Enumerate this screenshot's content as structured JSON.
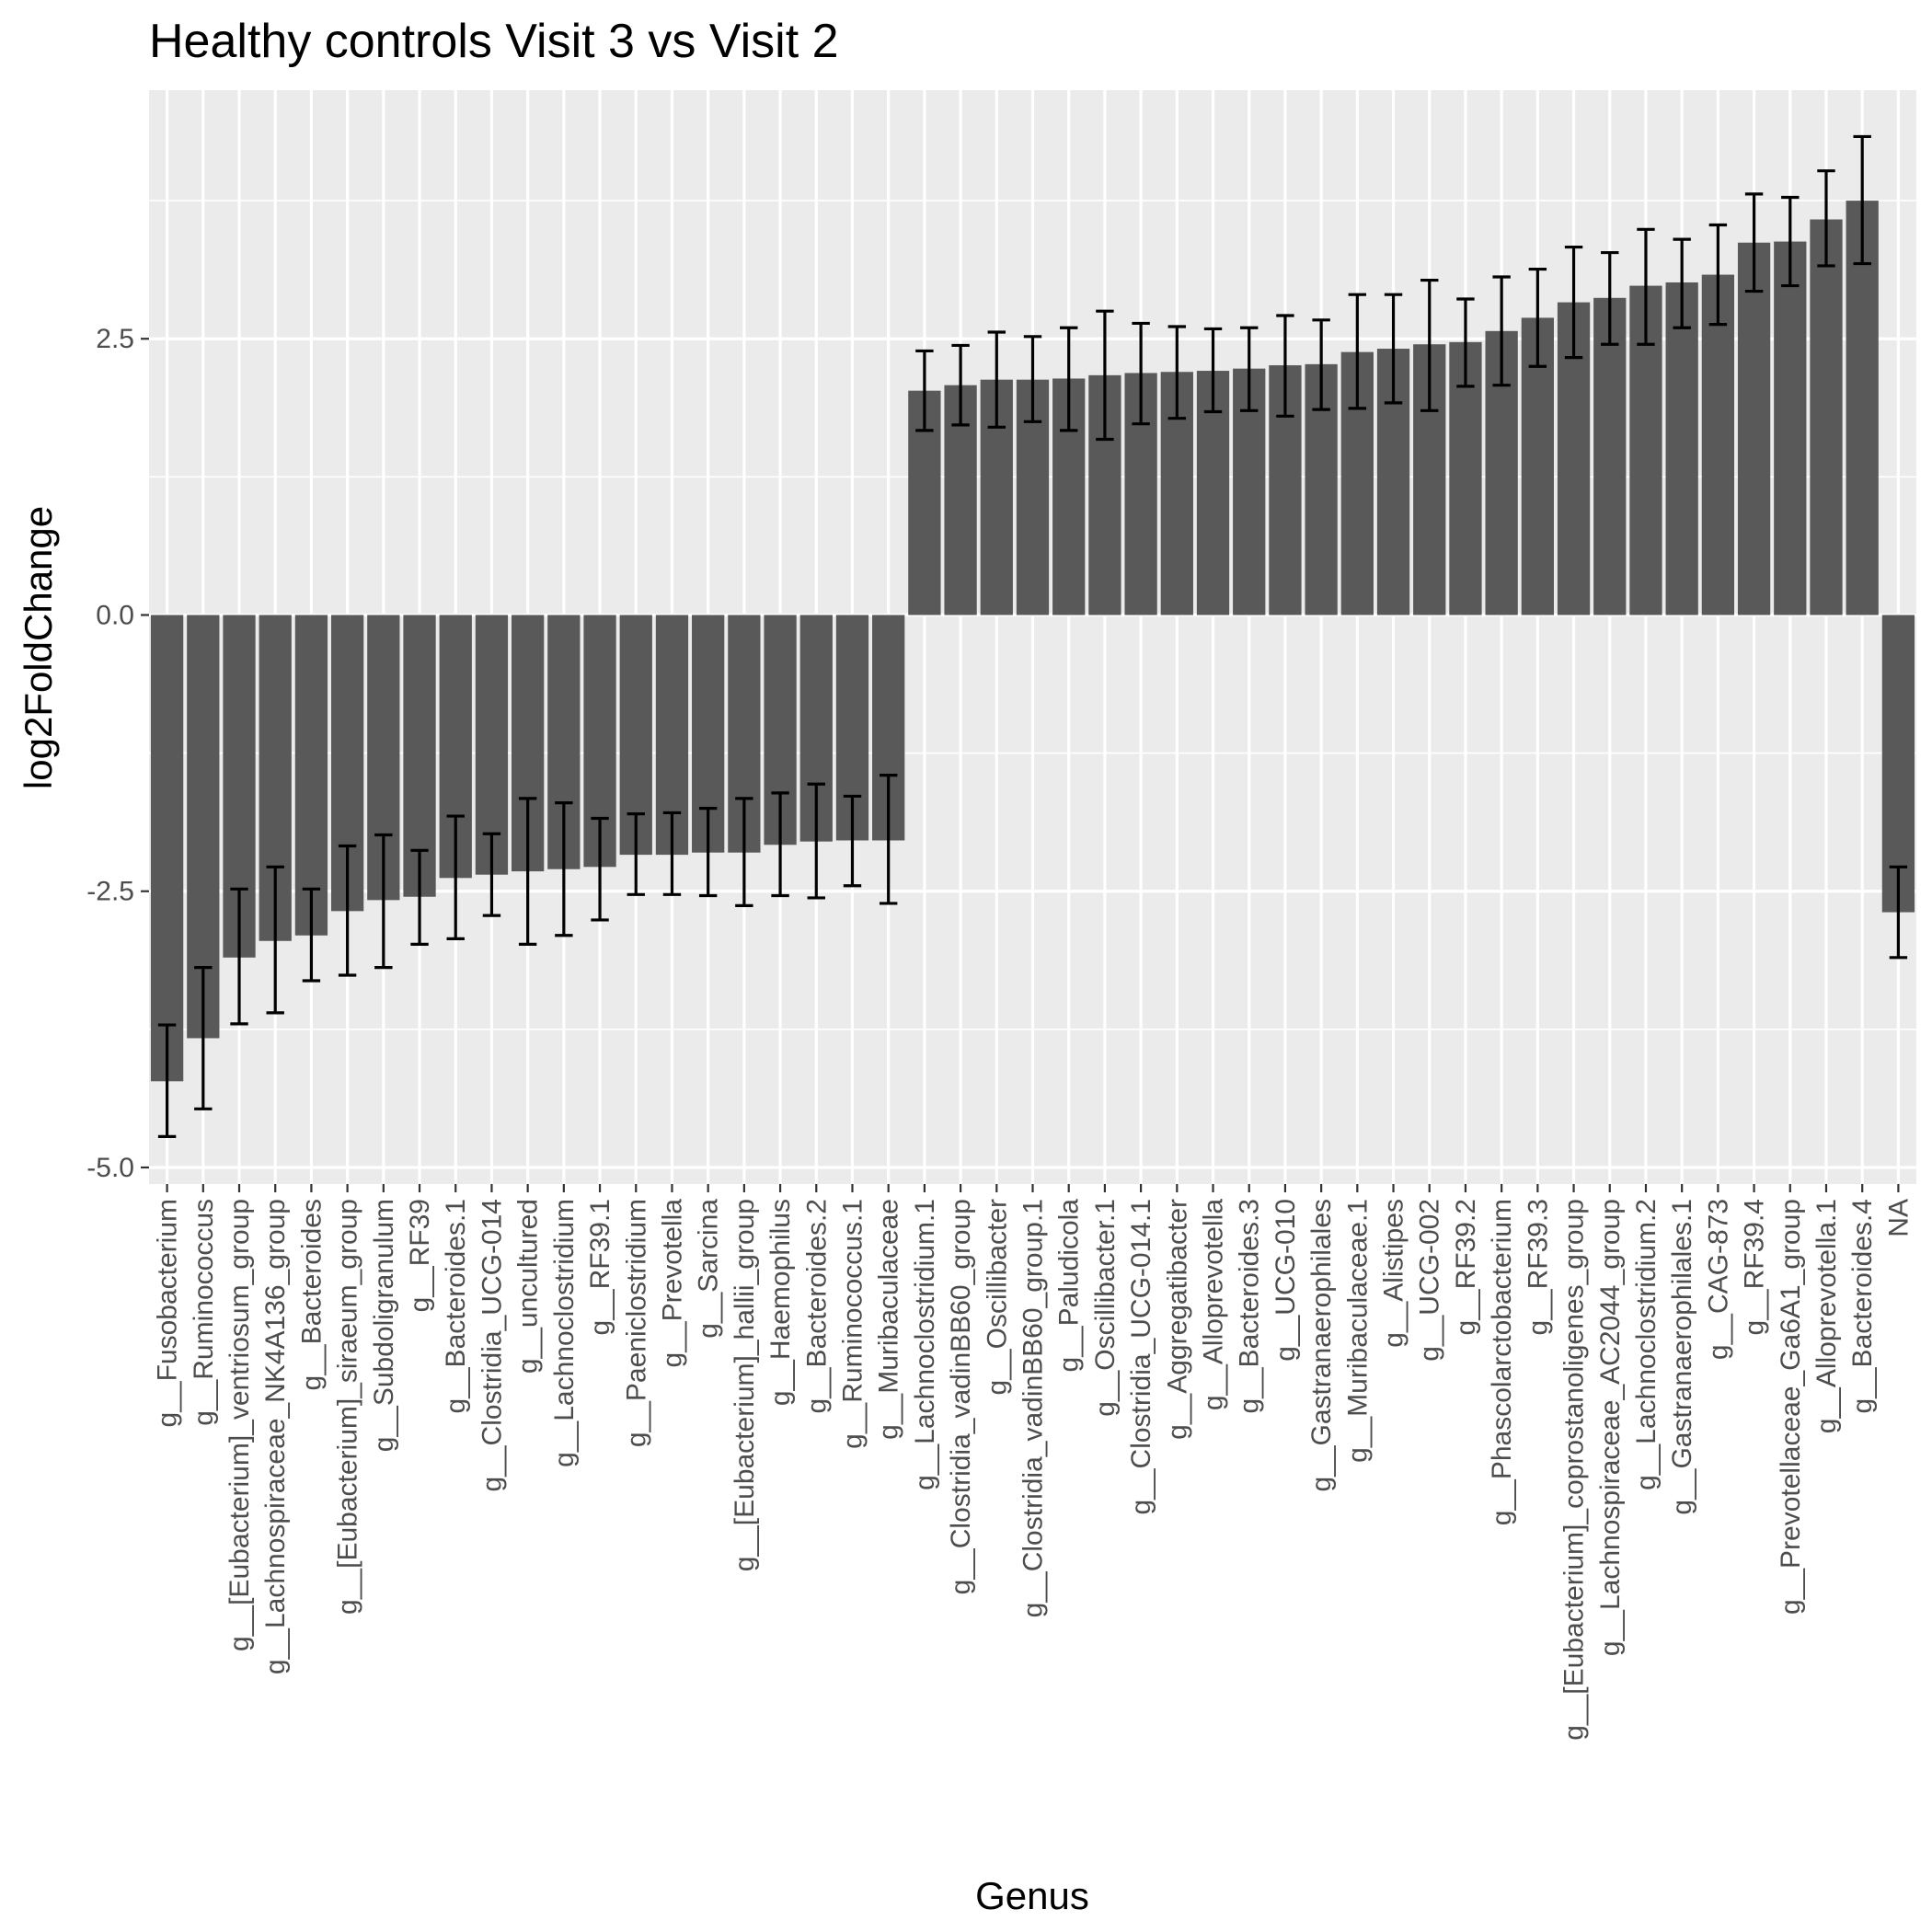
{
  "chart_data": {
    "type": "bar",
    "title": "Healthy controls Visit 3 vs Visit 2",
    "xlabel": "Genus",
    "ylabel": "log2FoldChange",
    "ylim": [
      -5.15,
      4.75
    ],
    "yticks": [
      -5.0,
      -2.5,
      0.0,
      2.5
    ],
    "ytick_labels": [
      "-5.0",
      "-2.5",
      "0.0",
      "2.5"
    ],
    "grid": true,
    "categories": [
      "g__Fusobacterium",
      "g__Ruminococcus",
      "g__[Eubacterium]_ventriosum_group",
      "g__Lachnospiraceae_NK4A136_group",
      "g__Bacteroides",
      "g__[Eubacterium]_siraeum_group",
      "g__Subdoligranulum",
      "g__RF39",
      "g__Bacteroides.1",
      "g__Clostridia_UCG-014",
      "g__uncultured",
      "g__Lachnoclostridium",
      "g__RF39.1",
      "g__Paeniclostridium",
      "g__Prevotella",
      "g__Sarcina",
      "g__[Eubacterium]_hallii_group",
      "g__Haemophilus",
      "g__Bacteroides.2",
      "g__Ruminococcus.1",
      "g__Muribaculaceae",
      "g__Lachnoclostridium.1",
      "g__Clostridia_vadinBB60_group",
      "g__Oscillibacter",
      "g__Clostridia_vadinBB60_group.1",
      "g__Paludicola",
      "g__Oscillibacter.1",
      "g__Clostridia_UCG-014.1",
      "g__Aggregatibacter",
      "g__Alloprevotella",
      "g__Bacteroides.3",
      "g__UCG-010",
      "g__Gastranaerophilales",
      "g__Muribaculaceae.1",
      "g__Alistipes",
      "g__UCG-002",
      "g__RF39.2",
      "g__Phascolarctobacterium",
      "g__RF39.3",
      "g__[Eubacterium]_coprostanoligenes_group",
      "g__Lachnospiraceae_AC2044_group",
      "g__Lachnoclostridium.2",
      "g__Gastranaerophilales.1",
      "g__CAG-873",
      "g__RF39.4",
      "g__Prevotellaceae_Ga6A1_group",
      "g__Alloprevotella.1",
      "g__Bacteroides.4",
      "NA"
    ],
    "values": [
      -4.22,
      -3.83,
      -3.1,
      -2.95,
      -2.9,
      -2.68,
      -2.58,
      -2.55,
      -2.38,
      -2.35,
      -2.32,
      -2.3,
      -2.28,
      -2.17,
      -2.17,
      -2.15,
      -2.15,
      -2.08,
      -2.05,
      -2.04,
      -2.04,
      2.03,
      2.08,
      2.13,
      2.13,
      2.14,
      2.17,
      2.19,
      2.2,
      2.21,
      2.23,
      2.26,
      2.27,
      2.38,
      2.41,
      2.45,
      2.47,
      2.57,
      2.69,
      2.83,
      2.87,
      2.98,
      3.01,
      3.08,
      3.37,
      3.38,
      3.58,
      3.75,
      -2.69
    ],
    "error_lower": [
      -4.72,
      -4.47,
      -3.7,
      -3.6,
      -3.31,
      -3.26,
      -3.19,
      -2.98,
      -2.93,
      -2.72,
      -2.98,
      -2.9,
      -2.76,
      -2.53,
      -2.53,
      -2.54,
      -2.63,
      -2.54,
      -2.56,
      -2.45,
      -2.61,
      1.67,
      1.72,
      1.7,
      1.75,
      1.67,
      1.59,
      1.73,
      1.78,
      1.84,
      1.85,
      1.8,
      1.86,
      1.87,
      1.92,
      1.85,
      2.07,
      2.08,
      2.25,
      2.33,
      2.45,
      2.45,
      2.6,
      2.63,
      2.93,
      2.98,
      3.16,
      3.18,
      -3.1
    ],
    "error_upper": [
      -3.71,
      -3.19,
      -2.48,
      -2.28,
      -2.48,
      -2.09,
      -1.99,
      -2.13,
      -1.82,
      -1.98,
      -1.66,
      -1.7,
      -1.84,
      -1.8,
      -1.79,
      -1.75,
      -1.66,
      -1.61,
      -1.53,
      -1.64,
      -1.45,
      2.39,
      2.44,
      2.56,
      2.52,
      2.6,
      2.75,
      2.64,
      2.61,
      2.59,
      2.6,
      2.71,
      2.67,
      2.9,
      2.9,
      3.03,
      2.86,
      3.06,
      3.13,
      3.33,
      3.28,
      3.49,
      3.4,
      3.53,
      3.81,
      3.78,
      4.02,
      4.33,
      -2.28
    ],
    "bar_color": "#595959",
    "panel_color": "#ebebeb",
    "grid_color": "#ffffff",
    "errorbar_color": "#000000"
  }
}
